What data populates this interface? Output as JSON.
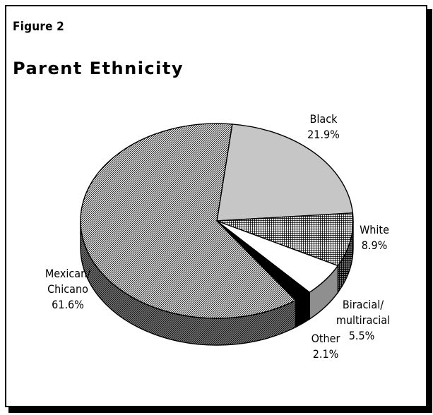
{
  "figure_label": "Figure 2",
  "chart_data": {
    "type": "pie",
    "title": "Parent Ethnicity",
    "slices": [
      {
        "name": "Mexican/ Chicano",
        "label_lines": [
          "Mexican/",
          "Chicano"
        ],
        "value": 61.6,
        "value_label": "61.6%",
        "fill": "dense-diagonal",
        "color": "#cccccc"
      },
      {
        "name": "Black",
        "label_lines": [
          "Black"
        ],
        "value": 21.9,
        "value_label": "21.9%",
        "fill": "solid-light-gray",
        "color": "#c8c8c8"
      },
      {
        "name": "White",
        "label_lines": [
          "White"
        ],
        "value": 8.9,
        "value_label": "8.9%",
        "fill": "crosshatch",
        "color": "#b4b4b4"
      },
      {
        "name": "Biracial/ multiracial",
        "label_lines": [
          "Biracial/",
          "multiracial"
        ],
        "value": 5.5,
        "value_label": "5.5%",
        "fill": "white",
        "color": "#ffffff"
      },
      {
        "name": "Other",
        "label_lines": [
          "Other"
        ],
        "value": 2.1,
        "value_label": "2.1%",
        "fill": "black",
        "color": "#000000"
      }
    ],
    "style": "3d-pie",
    "legend": "none (labels beside slices)"
  }
}
